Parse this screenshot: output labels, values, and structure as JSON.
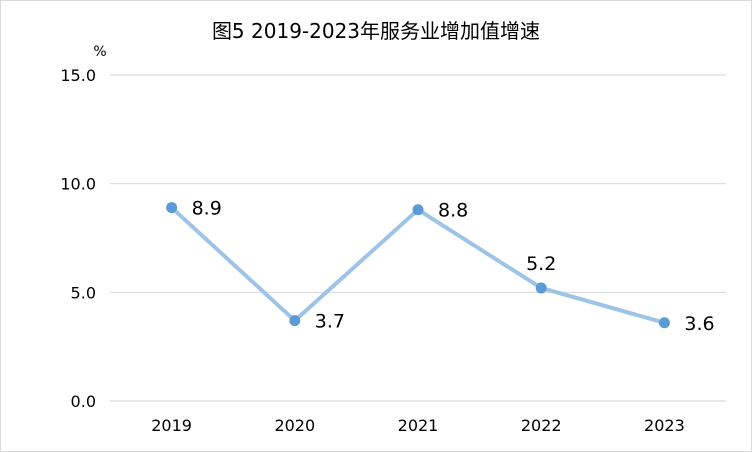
{
  "chart_data": {
    "type": "line",
    "title": "图5 2019-2023年服务业增加值增速",
    "unit_label": "%",
    "xlabel": "",
    "ylabel": "",
    "categories": [
      "2019",
      "2020",
      "2021",
      "2022",
      "2023"
    ],
    "series": [
      {
        "values": [
          8.9,
          3.7,
          8.8,
          5.2,
          3.6
        ]
      }
    ],
    "data_labels": [
      "8.9",
      "3.7",
      "8.8",
      "5.2",
      "3.6"
    ],
    "ylim": [
      0,
      15
    ],
    "yticks": [
      "0.0",
      "5.0",
      "10.0",
      "15.0"
    ],
    "grid": true,
    "legend": "none",
    "colors": {
      "line": "#9dc3e6",
      "marker": "#5b9bd5",
      "grid": "#d9d9d9"
    }
  }
}
